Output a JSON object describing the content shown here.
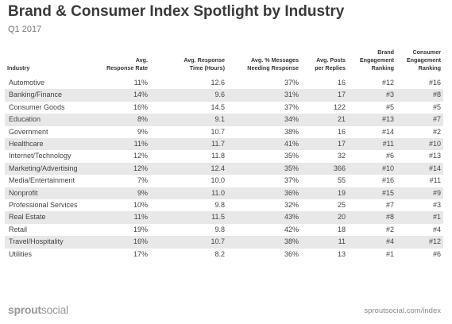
{
  "title": "Brand & Consumer Index Spotlight by Industry",
  "subtitle": "Q1 2017",
  "columns": [
    "Industry",
    "Avg.\nResponse Rate",
    "Avg. Response\nTime (Hours)",
    "Avg. % Messages\nNeeding Response",
    "Avg. Posts\nper Replies",
    "Brand\nEngagement\nRanking",
    "Consumer\nEngagement\nRanking"
  ],
  "rows": [
    [
      "Automotive",
      "11%",
      "12.6",
      "37%",
      "16",
      "#12",
      "#16"
    ],
    [
      "Banking/Finance",
      "14%",
      "9.6",
      "31%",
      "17",
      "#3",
      "#8"
    ],
    [
      "Consumer Goods",
      "16%",
      "14.5",
      "37%",
      "122",
      "#5",
      "#5"
    ],
    [
      "Education",
      "8%",
      "9.1",
      "34%",
      "21",
      "#13",
      "#7"
    ],
    [
      "Government",
      "9%",
      "10.7",
      "38%",
      "16",
      "#14",
      "#2"
    ],
    [
      "Healthcare",
      "11%",
      "11.7",
      "41%",
      "17",
      "#11",
      "#10"
    ],
    [
      "Internet/Technology",
      "12%",
      "11.8",
      "35%",
      "32",
      "#6",
      "#13"
    ],
    [
      "Marketing/Advertising",
      "12%",
      "12.4",
      "35%",
      "366",
      "#10",
      "#14"
    ],
    [
      "Media/Entertainment",
      "7%",
      "10.0",
      "37%",
      "55",
      "#16",
      "#11"
    ],
    [
      "Nonprofit",
      "9%",
      "11.0",
      "36%",
      "19",
      "#15",
      "#9"
    ],
    [
      "Professional Services",
      "10%",
      "9.8",
      "32%",
      "25",
      "#7",
      "#3"
    ],
    [
      "Real Estate",
      "11%",
      "11.5",
      "43%",
      "20",
      "#8",
      "#1"
    ],
    [
      "Retail",
      "19%",
      "9.8",
      "42%",
      "18",
      "#2",
      "#4"
    ],
    [
      "Travel/Hospitality",
      "16%",
      "10.7",
      "38%",
      "11",
      "#4",
      "#12"
    ],
    [
      "Utilities",
      "17%",
      "8.2",
      "36%",
      "13",
      "#1",
      "#6"
    ]
  ],
  "brand": {
    "bold": "sprout",
    "light": "social"
  },
  "site_url": "sproutsocial.com/index",
  "colors": {
    "stripe": "#e8e8e8",
    "title": "#3a3a3a",
    "brand_gray": "#9a9a9a"
  }
}
